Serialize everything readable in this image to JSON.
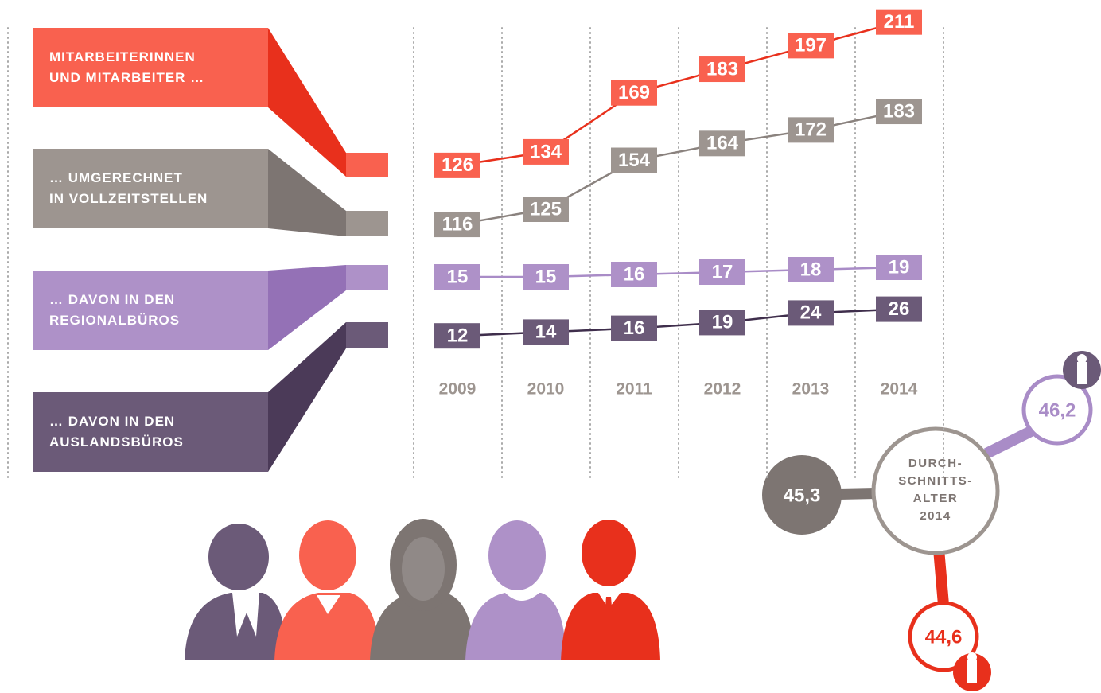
{
  "chart_data": {
    "type": "line",
    "categories": [
      "2009",
      "2010",
      "2011",
      "2012",
      "2013",
      "2014"
    ],
    "series": [
      {
        "name": "MITARBEITERINNEN\nUND MITARBEITER …",
        "color": "#e8301c",
        "values": [
          126,
          134,
          169,
          183,
          197,
          211
        ]
      },
      {
        "name": "… UMGERECHNET\nIN VOLLZEITSTELLEN",
        "color": "#8a827e",
        "values": [
          116,
          125,
          154,
          164,
          172,
          183
        ]
      },
      {
        "name": "… DAVON IN DEN\nREGIONALBÜROS",
        "color": "#a98cc7",
        "values": [
          15,
          15,
          16,
          17,
          18,
          19
        ]
      },
      {
        "name": "… DAVON IN DEN\nAUSLANDSBÜROS",
        "color": "#3f2e4c",
        "values": [
          12,
          14,
          16,
          19,
          24,
          26
        ]
      }
    ]
  },
  "average_age": {
    "title": "DURCH-\nSCHNITTS-\nALTER\n2014",
    "overall": "45,3",
    "female": "46,2",
    "male": "44,6"
  }
}
